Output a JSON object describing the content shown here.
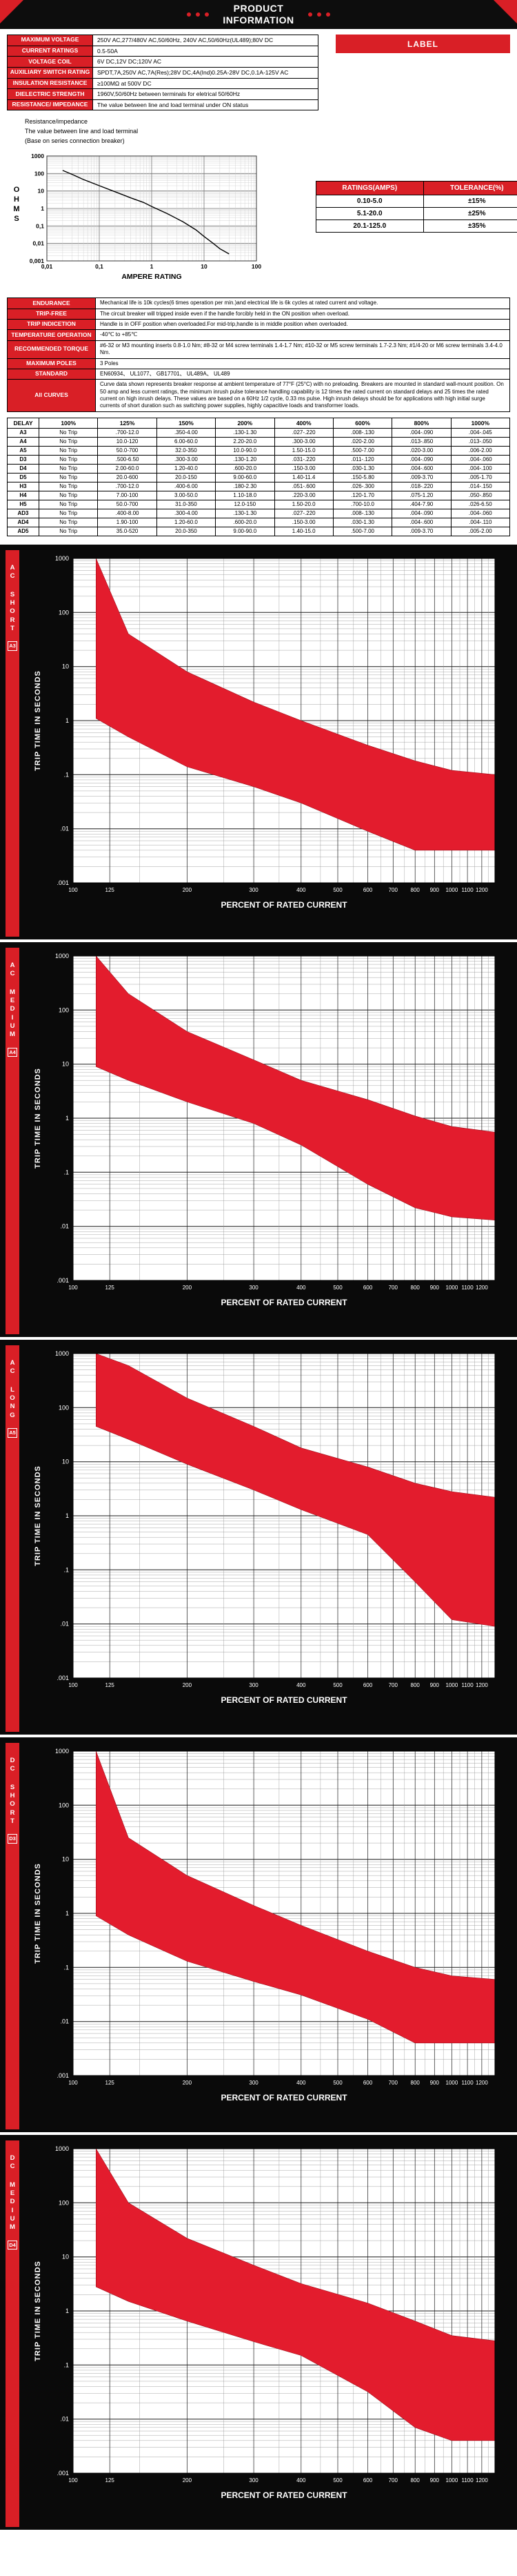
{
  "accent": "#d91f26",
  "header": {
    "title_line1": "PRODUCT",
    "title_line2": "INFORMATION"
  },
  "label_box": "LABEL",
  "spec_table": {
    "first_col_header": true,
    "rows": [
      [
        "MAXIMUM VOLTAGE",
        "250V AC,277/480V AC,50/60Hz, 240V AC,50/60Hz(UL489);80V DC"
      ],
      [
        "CURRENT RATINGS",
        "0.5-50A"
      ],
      [
        "VOLTAGE COIL",
        "6V DC,12V DC;120V AC"
      ],
      [
        "AUXILIARY SWITCH RATING",
        "SPDT,7A,250V AC,7A(Res);28V DC,4A(Ind)0.25A-28V DC,0.1A-125V AC"
      ],
      [
        "INSULATION RESISTANCE",
        "≥100MΩ at 500V DC"
      ],
      [
        "DIELECTRIC STRENGTH",
        "1960V,50/60Hz between terminals for eletrical 50/60Hz"
      ],
      [
        "RESISTANCE/ IMPEDANCE",
        "The value between line and load terminal under ON status"
      ]
    ]
  },
  "resistance_note": {
    "lines": [
      "Resistance/impedance",
      "The value between line and load terminal",
      "(Base on series connection breaker)"
    ]
  },
  "tolerance_table": {
    "headers": [
      "RATINGS(AMPS)",
      "TOLERANCE(%)"
    ],
    "rows": [
      [
        "0.10-5.0",
        "±15%"
      ],
      [
        "5.1-20.0",
        "±25%"
      ],
      [
        "20.1-125.0",
        "±35%"
      ]
    ]
  },
  "details_table": {
    "first_col_header": true,
    "rows": [
      [
        "ENDURANCE",
        "Mechanical life is 10k cycles(6 times operation per min.)and electrical life is 6k cycles at rated current and voltage."
      ],
      [
        "TRIP-FREE",
        "The circuit breaker will tripped inside even if the handle forcibly held in the ON position when overload."
      ],
      [
        "TRIP INDICETION",
        "Handle is in OFF position when overloaded.For mid-trip,handle is in middle position when overloaded."
      ],
      [
        "TEMPERATURE OPERATION",
        "-40℃ to +85℃"
      ],
      [
        "RECOMMENDED TORQUE",
        "#6-32 or M3 mounting inserts 0.8-1.0 Nm; #8-32 or M4 screw terminals 1.4-1.7 Nm; #10-32 or M5 screw terminals 1.7-2.3 Nm; #1/4-20 or M6 screw terminals 3.4-4.0 Nm."
      ],
      [
        "MAXIMUM POLES",
        "3 Poles"
      ],
      [
        "STANDARD",
        "EN60934、 UL1077、 GB17701、 UL489A、 UL489"
      ],
      [
        "All CURVES",
        "Curve data shown represents breaker response at ambient temperature of 77°F (25°C) with no preloading. Breakers are mounted in standard wall-mount position. On 50 amp and less current ratings, the minimum inrush pulse tolerance handling capability is 12 times the rated current on standard delays and 25 times the rated current on high inrush delays. These values are based on a 60Hz 1/2 cycle, 0.33 ms pulse. High inrush delays should be for applications with high initial surge currents of short duration such as switching power supplies, highly capacitive loads and transformer loads."
      ]
    ]
  },
  "delay_table": {
    "headers": [
      "DELAY",
      "100%",
      "125%",
      "150%",
      "200%",
      "400%",
      "600%",
      "800%",
      "1000%"
    ],
    "rows": [
      [
        "A3",
        "No Trip",
        ".700-12.0",
        ".350-4.00",
        ".130-1.30",
        ".027-.220",
        ".008-.130",
        ".004-.090",
        ".004-.045"
      ],
      [
        "A4",
        "No Trip",
        "10.0-120",
        "6.00-60.0",
        "2.20-20.0",
        ".300-3.00",
        ".020-2.00",
        ".013-.850",
        ".013-.050"
      ],
      [
        "A5",
        "No Trip",
        "50.0-700",
        "32.0-350",
        "10.0-90.0",
        "1.50-15.0",
        ".500-7.00",
        ".020-3.00",
        ".006-2.00"
      ],
      [
        "D3",
        "No Trip",
        ".500-6.50",
        ".300-3.00",
        ".130-1.20",
        ".031-.220",
        ".011-.120",
        ".004-.090",
        ".004-.060"
      ],
      [
        "D4",
        "No Trip",
        "2.00-60.0",
        "1.20-40.0",
        ".600-20.0",
        ".150-3.00",
        ".030-1.30",
        ".004-.600",
        ".004-.100"
      ],
      [
        "D5",
        "No Trip",
        "20.0-600",
        "20.0-150",
        "9.00-60.0",
        "1.40-11.4",
        ".150-5.80",
        ".009-3.70",
        ".005-1.70"
      ],
      [
        "H3",
        "No Trip",
        ".700-12.0",
        ".400-6.00",
        ".180-2.30",
        ".051-.600",
        ".026-.300",
        ".018-.220",
        ".014-.150"
      ],
      [
        "H4",
        "No Trip",
        "7.00-100",
        "3.00-50.0",
        "1.10-18.0",
        ".220-3.00",
        ".120-1.70",
        ".075-1.20",
        ".050-.850"
      ],
      [
        "H5",
        "No Trip",
        "50.0-700",
        "31.0-350",
        "12.0-150",
        "1.50-20.0",
        ".700-10.0",
        ".404-7.90",
        ".026-6.50"
      ],
      [
        "AD3",
        "No Trip",
        ".400-8.00",
        ".300-4.00",
        ".130-1.30",
        ".027-.220",
        ".008-.130",
        ".004-.090",
        ".004-.060"
      ],
      [
        "AD4",
        "No Trip",
        "1.90-100",
        "1.20-60.0",
        ".600-20.0",
        ".150-3.00",
        ".030-1.30",
        ".004-.600",
        ".004-.110"
      ],
      [
        "AD5",
        "No Trip",
        "35.0-520",
        "20.0-350",
        "9.00-90.0",
        "1.40-15.0",
        ".500-7.00",
        ".009-3.70",
        ".005-2.00"
      ]
    ]
  },
  "chart_data": {
    "ohms": {
      "type": "line",
      "xlabel": "AMPERE RATING",
      "ylabel": "OHMS",
      "x_range": [
        0.01,
        100
      ],
      "y_range": [
        0.001,
        1000
      ],
      "x_ticks": [
        [
          0.01,
          "0,01"
        ],
        [
          0.1,
          "0,1"
        ],
        [
          1,
          "1"
        ],
        [
          10,
          "10"
        ],
        [
          100,
          "100"
        ]
      ],
      "y_ticks": [
        [
          1000,
          "1000"
        ],
        [
          100,
          "100"
        ],
        [
          10,
          "10"
        ],
        [
          1,
          "1"
        ],
        [
          0.1,
          "0,1"
        ],
        [
          0.01,
          "0,01"
        ],
        [
          0.001,
          "0,001"
        ]
      ],
      "points": [
        [
          0.02,
          150
        ],
        [
          0.03,
          90
        ],
        [
          0.05,
          45
        ],
        [
          0.1,
          20
        ],
        [
          0.2,
          9
        ],
        [
          0.4,
          4
        ],
        [
          0.7,
          2.2
        ],
        [
          1,
          1.3
        ],
        [
          2,
          0.5
        ],
        [
          4,
          0.17
        ],
        [
          7,
          0.06
        ],
        [
          10,
          0.025
        ],
        [
          15,
          0.01
        ],
        [
          20,
          0.005
        ],
        [
          30,
          0.0025
        ]
      ]
    },
    "trip_axis": {
      "type": "area",
      "xlabel": "PERCENT OF RATED CURRENT",
      "ylabel": "TRIP TIME IN SECONDS",
      "x_range": [
        100,
        1300
      ],
      "y_range": [
        0.001,
        1000
      ],
      "x_ticks": [
        [
          100,
          "100"
        ],
        [
          125,
          "125"
        ],
        [
          200,
          "200"
        ],
        [
          300,
          "300"
        ],
        [
          400,
          "400"
        ],
        [
          500,
          "500"
        ],
        [
          600,
          "600"
        ],
        [
          700,
          "700"
        ],
        [
          800,
          "800"
        ],
        [
          900,
          "900"
        ],
        [
          1000,
          "1000"
        ],
        [
          1100,
          "1100"
        ],
        [
          1200,
          "1200"
        ]
      ],
      "y_ticks": [
        [
          1000,
          "1000"
        ],
        [
          100,
          "100"
        ],
        [
          10,
          "10"
        ],
        [
          1,
          "1"
        ],
        [
          0.1,
          ".1"
        ],
        [
          0.01,
          ".01"
        ],
        [
          0.001,
          ".001"
        ]
      ]
    },
    "trip_charts": [
      {
        "code": "A3",
        "group": "AC",
        "delay": "SHORT",
        "band": {
          "x": [
            115,
            140,
            200,
            300,
            400,
            600,
            800,
            1000,
            1300
          ],
          "upper": [
            1000,
            40,
            8,
            2.2,
            1.0,
            0.35,
            0.18,
            0.12,
            0.1
          ],
          "lower": [
            1.1,
            0.5,
            0.14,
            0.06,
            0.03,
            0.009,
            0.004,
            0.004,
            0.004
          ]
        }
      },
      {
        "code": "A4",
        "group": "AC",
        "delay": "MEDIUM",
        "band": {
          "x": [
            115,
            140,
            200,
            300,
            400,
            600,
            800,
            1000,
            1300
          ],
          "upper": [
            1000,
            200,
            40,
            12,
            5,
            2.2,
            1.1,
            0.7,
            0.55
          ],
          "lower": [
            9,
            5,
            2,
            0.8,
            0.32,
            0.06,
            0.022,
            0.015,
            0.013
          ]
        }
      },
      {
        "code": "A5",
        "group": "AC",
        "delay": "LONG",
        "band": {
          "x": [
            115,
            140,
            200,
            300,
            400,
            600,
            800,
            1000,
            1300
          ],
          "upper": [
            1000,
            600,
            150,
            45,
            18,
            8,
            4,
            2.8,
            2.2
          ],
          "lower": [
            45,
            26,
            9,
            3,
            1.3,
            0.45,
            0.06,
            0.012,
            0.009
          ]
        }
      },
      {
        "code": "D3",
        "group": "DC",
        "delay": "SHORT",
        "band": {
          "x": [
            115,
            140,
            200,
            300,
            400,
            600,
            800,
            1000,
            1300
          ],
          "upper": [
            1000,
            25,
            5,
            1.4,
            0.6,
            0.2,
            0.1,
            0.07,
            0.06
          ],
          "lower": [
            0.9,
            0.4,
            0.13,
            0.055,
            0.031,
            0.011,
            0.004,
            0.004,
            0.004
          ]
        }
      },
      {
        "code": "D4",
        "group": "DC",
        "delay": "MEDIUM",
        "band": {
          "x": [
            115,
            140,
            200,
            300,
            400,
            600,
            800,
            1000,
            1300
          ],
          "upper": [
            1000,
            100,
            22,
            7,
            3.2,
            1.4,
            0.65,
            0.35,
            0.28
          ],
          "lower": [
            2.8,
            1.5,
            0.65,
            0.27,
            0.15,
            0.032,
            0.007,
            0.004,
            0.004
          ]
        }
      }
    ]
  }
}
